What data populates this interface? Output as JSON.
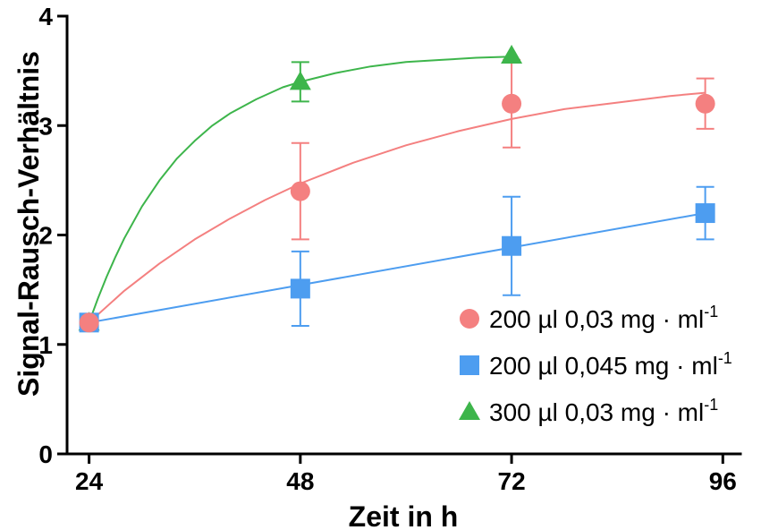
{
  "chart_data": {
    "type": "scatter",
    "xlabel": "Zeit in h",
    "ylabel": "Signal-Rausch-Verhältnis",
    "xlim": [
      21.5,
      98
    ],
    "ylim": [
      0,
      4
    ],
    "xticks": [
      24,
      48,
      72,
      96
    ],
    "yticks": [
      0,
      1,
      2,
      3,
      4
    ],
    "grid": false,
    "legend_position": "bottom-right",
    "series": [
      {
        "name": "200 µl 0,03 mg · ml",
        "name_sup": "-1",
        "marker": "circle",
        "color": "#F48080",
        "x": [
          24,
          48,
          72,
          94
        ],
        "y": [
          1.2,
          2.4,
          3.2,
          3.2
        ],
        "error": [
          0,
          0.44,
          0.4,
          0.23
        ],
        "fit": {
          "x": [
            24,
            28,
            32,
            36,
            40,
            44,
            48,
            54,
            60,
            66,
            72,
            78,
            84,
            90,
            94
          ],
          "y": [
            1.2,
            1.49,
            1.74,
            1.96,
            2.15,
            2.32,
            2.47,
            2.66,
            2.82,
            2.95,
            3.06,
            3.15,
            3.21,
            3.27,
            3.3
          ]
        }
      },
      {
        "name": "200 µl 0,045 mg · ml",
        "name_sup": "-1",
        "marker": "square",
        "color": "#4D9DF0",
        "x": [
          24,
          48,
          72,
          94
        ],
        "y": [
          1.2,
          1.51,
          1.9,
          2.2
        ],
        "error": [
          0,
          0.34,
          0.45,
          0.24
        ],
        "fit": {
          "x": [
            24,
            94
          ],
          "y": [
            1.2,
            2.2
          ]
        }
      },
      {
        "name": "300 µl 0,03 mg · ml",
        "name_sup": "-1",
        "marker": "triangle",
        "color": "#3DB54B",
        "x": [
          24,
          48,
          72
        ],
        "y": [
          1.2,
          3.4,
          3.64
        ],
        "error": [
          0,
          0.18,
          0
        ],
        "fit": {
          "x": [
            24,
            25,
            26,
            27,
            28,
            30,
            32,
            34,
            36,
            38,
            40,
            43,
            46,
            48,
            52,
            56,
            60,
            64,
            68,
            72
          ],
          "y": [
            1.2,
            1.42,
            1.62,
            1.8,
            1.97,
            2.26,
            2.5,
            2.7,
            2.86,
            3.0,
            3.11,
            3.24,
            3.35,
            3.4,
            3.48,
            3.54,
            3.58,
            3.6,
            3.62,
            3.63
          ]
        }
      }
    ]
  }
}
